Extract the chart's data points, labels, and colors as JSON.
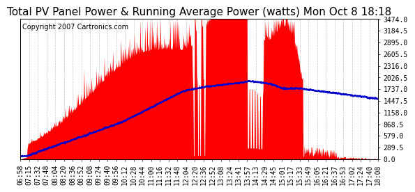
{
  "title": "Total PV Panel Power & Running Average Power (watts) Mon Oct 8 18:18",
  "copyright": "Copyright 2007 Cartronics.com",
  "y_max": 3474.0,
  "y_min": 0.0,
  "y_ticks": [
    0.0,
    289.5,
    579.0,
    868.5,
    1158.0,
    1447.5,
    1737.0,
    2026.5,
    2316.0,
    2605.5,
    2895.0,
    3184.5,
    3474.0
  ],
  "x_labels": [
    "06:58",
    "07:15",
    "07:32",
    "07:48",
    "08:04",
    "08:20",
    "08:36",
    "08:52",
    "09:08",
    "09:24",
    "09:40",
    "09:56",
    "10:12",
    "10:28",
    "10:44",
    "11:00",
    "11:16",
    "11:32",
    "11:48",
    "12:04",
    "12:20",
    "12:36",
    "12:52",
    "13:08",
    "13:24",
    "13:41",
    "13:57",
    "14:13",
    "14:29",
    "14:45",
    "15:01",
    "15:17",
    "15:33",
    "15:49",
    "16:05",
    "16:21",
    "16:37",
    "16:53",
    "17:02",
    "17:24",
    "17:40",
    "18:08"
  ],
  "background_color": "#ffffff",
  "plot_bg_color": "#ffffff",
  "grid_color": "#c8c8c8",
  "fill_color": "#ff0000",
  "line_color": "#0000cc",
  "title_fontsize": 11,
  "copyright_fontsize": 7,
  "tick_fontsize": 7
}
